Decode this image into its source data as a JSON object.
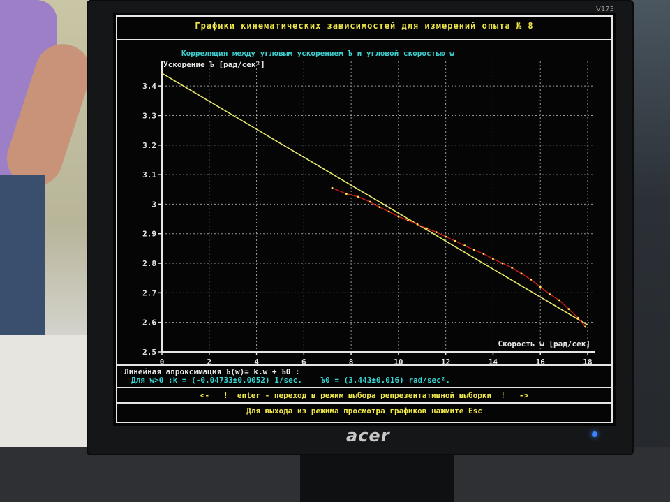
{
  "window": {
    "title": "Графики кинематических зависимостей для измерений опыта № 8",
    "model_label": "V173",
    "brand": "acer"
  },
  "chart_data": {
    "type": "scatter",
    "title": "Корреляция между угловым ускорением Ъ и угловой скоростью w",
    "ylabel": "Ускорение Ъ [рад/сек²]",
    "xlabel": "Скорость w [рад/сек]",
    "xlim": [
      0,
      18
    ],
    "ylim": [
      2.5,
      3.45
    ],
    "x_ticks": [
      "0",
      "2",
      "4",
      "6",
      "8",
      "10",
      "12",
      "14",
      "16",
      "18"
    ],
    "y_ticks": [
      "2.5",
      "2.6",
      "2.7",
      "2.8",
      "2.9",
      "3",
      "3.1",
      "3.2",
      "3.3",
      "3.4"
    ],
    "grid": true,
    "colors": {
      "fit": "#e8e86a",
      "measured": "#d11a1a",
      "points": "#ffe94d",
      "text": "#e8e8e8",
      "title": "#3fd0d0"
    },
    "series": [
      {
        "values_x": [
          7.2,
          7.8,
          8.3,
          8.8,
          9.2,
          9.6,
          10.0,
          10.4,
          10.8,
          11.2,
          11.6,
          12.0,
          12.4,
          12.8,
          13.2,
          13.6,
          14.0,
          14.4,
          14.8,
          15.2,
          15.6,
          16.0,
          16.4,
          16.8,
          17.2,
          17.6,
          17.9
        ],
        "values_y": [
          3.055,
          3.035,
          3.025,
          3.008,
          2.99,
          2.975,
          2.958,
          2.945,
          2.932,
          2.918,
          2.905,
          2.89,
          2.875,
          2.86,
          2.845,
          2.832,
          2.815,
          2.8,
          2.785,
          2.765,
          2.745,
          2.72,
          2.695,
          2.675,
          2.645,
          2.615,
          2.585
        ]
      },
      {
        "values_x": [
          0,
          18
        ],
        "values_y": [
          3.443,
          2.591
        ]
      }
    ]
  },
  "info": {
    "line1": "Линейная апроксимация Ъ(w)= k.w + Ъ0 :",
    "line2": "Для w>0 :k = (-0.04733±0.0052) 1/sec.    Ъ0 = (3.443±0.016) rad/sec².",
    "nav": "<-   !  enter - переход в режим выбора репрезентативной выборки  !   ->",
    "exit": "Для выхода из режима просмотра графиков нажмите Esc"
  }
}
